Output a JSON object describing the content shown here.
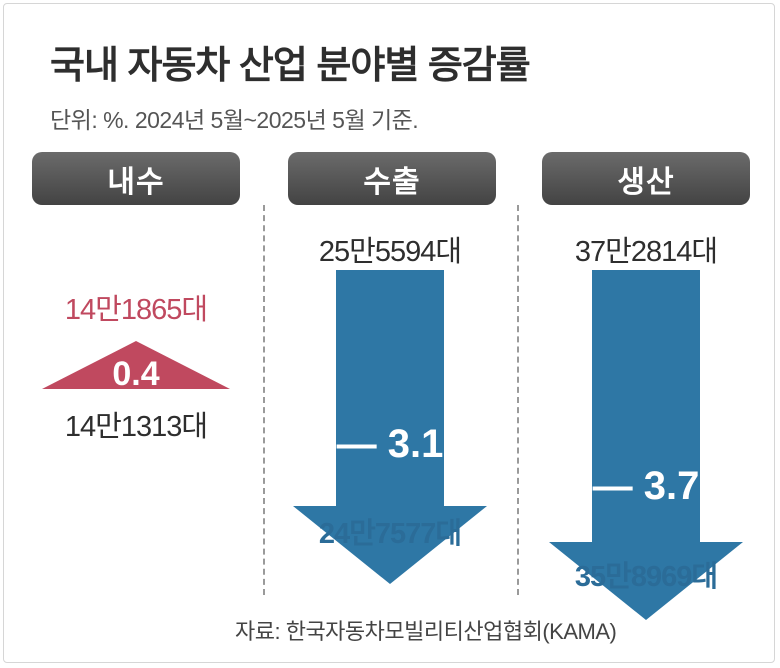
{
  "title": "국내 자동차 산업 분야별 증감률",
  "subtitle": "단위: %. 2024년 5월~2025년 5월 기준.",
  "source": "자료: 한국자동차모빌리티산업협회(KAMA)",
  "colors": {
    "increase": "#c0495f",
    "decrease": "#2e77a5",
    "header": "#555555"
  },
  "chart_data": {
    "type": "bar",
    "categories": [
      "내수",
      "수출",
      "생산"
    ],
    "values": [
      0.4,
      -3.1,
      -3.7
    ],
    "change_labels": [
      "0.4",
      "— 3.1",
      "— 3.7"
    ],
    "period_start_labels": [
      "14만1313대",
      "25만5594대",
      "37만2814대"
    ],
    "period_end_labels": [
      "14만1865대",
      "24만7577대",
      "35만8969대"
    ],
    "period_start_units": [
      141313,
      255594,
      372814
    ],
    "period_end_units": [
      141865,
      247577,
      358969
    ]
  }
}
